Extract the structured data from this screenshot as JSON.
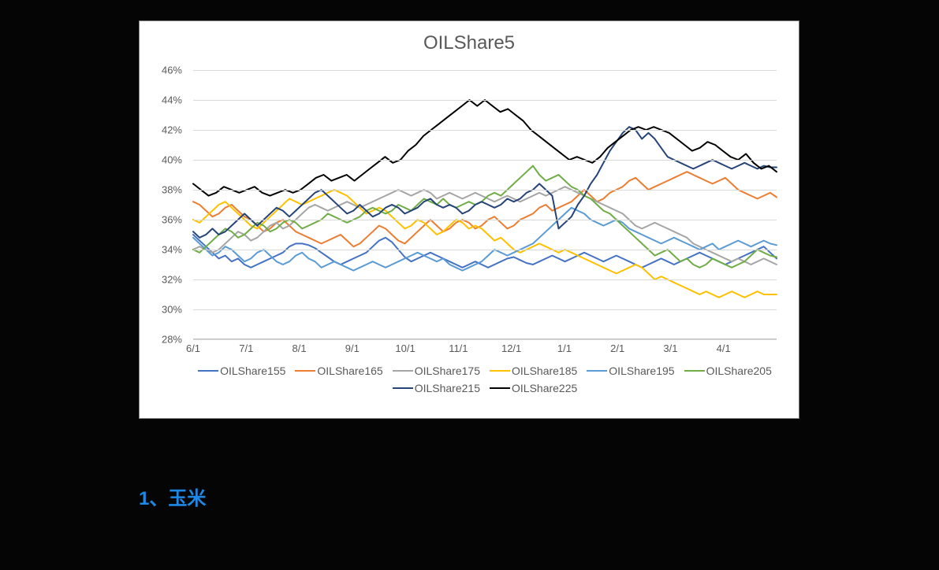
{
  "chart": {
    "title": "OILShare5",
    "title_fontsize": 24,
    "title_color": "#595959",
    "background_color": "#ffffff",
    "grid_color": "#d9d9d9",
    "text_color": "#595959",
    "xlim": [
      "6/1",
      "4/30"
    ],
    "ylim": [
      28,
      46
    ],
    "ytick_step": 2,
    "y_format": "percent",
    "y_ticks": [
      "28%",
      "30%",
      "32%",
      "34%",
      "36%",
      "38%",
      "40%",
      "42%",
      "44%",
      "46%"
    ],
    "x_ticks": [
      "6/1",
      "7/1",
      "8/1",
      "9/1",
      "10/1",
      "11/1",
      "12/1",
      "1/1",
      "2/1",
      "3/1",
      "4/1"
    ],
    "line_width": 2,
    "series": [
      {
        "name": "OILShare155",
        "color": "#4472c4",
        "values": [
          35.0,
          34.6,
          34.2,
          33.8,
          33.4,
          33.6,
          33.2,
          33.4,
          33.0,
          32.8,
          33.0,
          33.2,
          33.4,
          33.6,
          33.8,
          34.2,
          34.4,
          34.4,
          34.3,
          34.1,
          33.8,
          33.5,
          33.2,
          33.0,
          33.2,
          33.4,
          33.6,
          33.8,
          34.2,
          34.6,
          34.8,
          34.5,
          34.0,
          33.5,
          33.2,
          33.4,
          33.6,
          33.8,
          33.6,
          33.4,
          33.2,
          33.0,
          32.8,
          33.0,
          33.2,
          33.0,
          32.8,
          33.0,
          33.2,
          33.4,
          33.5,
          33.3,
          33.1,
          33.0,
          33.2,
          33.4,
          33.6,
          33.4,
          33.2,
          33.4,
          33.6,
          33.8,
          33.6,
          33.4,
          33.2,
          33.4,
          33.6,
          33.4,
          33.2,
          33.0,
          32.8,
          33.0,
          33.2,
          33.4,
          33.2,
          33.0,
          33.2,
          33.4,
          33.6,
          33.8,
          33.6,
          33.4,
          33.2,
          33.0,
          33.2,
          33.4,
          33.6,
          33.8,
          34.0,
          34.2,
          33.8,
          33.4
        ]
      },
      {
        "name": "OILShare165",
        "color": "#ed7d31",
        "values": [
          37.2,
          37.0,
          36.6,
          36.2,
          36.4,
          36.8,
          37.0,
          36.6,
          36.2,
          36.0,
          35.6,
          35.2,
          35.4,
          35.8,
          36.0,
          35.6,
          35.2,
          35.0,
          34.8,
          34.6,
          34.4,
          34.6,
          34.8,
          35.0,
          34.6,
          34.2,
          34.4,
          34.8,
          35.2,
          35.6,
          35.4,
          35.0,
          34.6,
          34.4,
          34.8,
          35.2,
          35.6,
          36.0,
          35.6,
          35.2,
          35.4,
          35.8,
          36.0,
          35.8,
          35.4,
          35.6,
          36.0,
          36.2,
          35.8,
          35.4,
          35.6,
          36.0,
          36.2,
          36.4,
          36.8,
          37.0,
          36.6,
          36.8,
          37.0,
          37.2,
          37.6,
          38.0,
          37.6,
          37.2,
          37.4,
          37.8,
          38.0,
          38.2,
          38.6,
          38.8,
          38.4,
          38.0,
          38.2,
          38.4,
          38.6,
          38.8,
          39.0,
          39.2,
          39.0,
          38.8,
          38.6,
          38.4,
          38.6,
          38.8,
          38.4,
          38.0,
          37.8,
          37.6,
          37.4,
          37.6,
          37.8,
          37.5
        ]
      },
      {
        "name": "OILShare175",
        "color": "#a5a5a5",
        "values": [
          34.0,
          34.2,
          34.0,
          33.8,
          34.0,
          34.4,
          34.8,
          35.2,
          35.0,
          34.6,
          34.8,
          35.2,
          35.6,
          35.8,
          35.4,
          35.6,
          36.0,
          36.4,
          36.8,
          37.0,
          36.8,
          36.6,
          36.8,
          37.0,
          37.2,
          37.0,
          36.8,
          37.0,
          37.2,
          37.4,
          37.6,
          37.8,
          38.0,
          37.8,
          37.6,
          37.8,
          38.0,
          37.8,
          37.4,
          37.6,
          37.8,
          37.6,
          37.4,
          37.6,
          37.8,
          37.6,
          37.4,
          37.2,
          37.4,
          37.6,
          37.4,
          37.2,
          37.4,
          37.6,
          37.8,
          37.6,
          37.8,
          38.0,
          38.2,
          38.0,
          37.8,
          37.6,
          37.4,
          37.2,
          37.0,
          36.8,
          36.6,
          36.4,
          36.0,
          35.6,
          35.4,
          35.6,
          35.8,
          35.6,
          35.4,
          35.2,
          35.0,
          34.8,
          34.4,
          34.2,
          34.0,
          33.8,
          33.6,
          33.4,
          33.2,
          33.4,
          33.2,
          33.0,
          33.2,
          33.4,
          33.2,
          33.0
        ]
      },
      {
        "name": "OILShare185",
        "color": "#ffc000",
        "values": [
          36.0,
          35.8,
          36.2,
          36.6,
          37.0,
          37.2,
          36.8,
          36.4,
          36.0,
          35.6,
          35.4,
          35.8,
          36.2,
          36.6,
          37.0,
          37.4,
          37.2,
          37.0,
          37.2,
          37.4,
          37.6,
          37.8,
          38.0,
          37.8,
          37.6,
          37.2,
          36.8,
          36.4,
          36.6,
          36.8,
          36.6,
          36.2,
          35.8,
          35.4,
          35.6,
          36.0,
          35.8,
          35.4,
          35.0,
          35.2,
          35.6,
          36.0,
          35.8,
          35.4,
          35.6,
          35.4,
          35.0,
          34.6,
          34.8,
          34.4,
          34.0,
          33.8,
          34.0,
          34.2,
          34.4,
          34.2,
          34.0,
          33.8,
          34.0,
          33.8,
          33.6,
          33.4,
          33.2,
          33.0,
          32.8,
          32.6,
          32.4,
          32.6,
          32.8,
          33.0,
          32.8,
          32.4,
          32.0,
          32.2,
          32.0,
          31.8,
          31.6,
          31.4,
          31.2,
          31.0,
          31.2,
          31.0,
          30.8,
          31.0,
          31.2,
          31.0,
          30.8,
          31.0,
          31.2,
          31.0,
          31.0,
          31.0
        ]
      },
      {
        "name": "OILShare195",
        "color": "#5b9bd5",
        "values": [
          34.8,
          34.4,
          34.0,
          33.6,
          33.8,
          34.2,
          34.0,
          33.6,
          33.2,
          33.4,
          33.8,
          34.0,
          33.6,
          33.2,
          33.0,
          33.2,
          33.6,
          33.8,
          33.4,
          33.2,
          32.8,
          33.0,
          33.2,
          33.0,
          32.8,
          32.6,
          32.8,
          33.0,
          33.2,
          33.0,
          32.8,
          33.0,
          33.2,
          33.4,
          33.6,
          33.8,
          33.6,
          33.4,
          33.2,
          33.4,
          33.0,
          32.8,
          32.6,
          32.8,
          33.0,
          33.2,
          33.6,
          34.0,
          33.8,
          33.6,
          33.8,
          34.0,
          34.2,
          34.4,
          34.8,
          35.2,
          35.6,
          36.0,
          36.4,
          36.8,
          36.6,
          36.4,
          36.0,
          35.8,
          35.6,
          35.8,
          36.0,
          35.8,
          35.4,
          35.2,
          35.0,
          34.8,
          34.6,
          34.4,
          34.6,
          34.8,
          34.6,
          34.4,
          34.2,
          34.0,
          34.2,
          34.4,
          34.0,
          34.2,
          34.4,
          34.6,
          34.4,
          34.2,
          34.4,
          34.6,
          34.4,
          34.3
        ]
      },
      {
        "name": "OILShare205",
        "color": "#70ad47",
        "values": [
          34.0,
          33.8,
          34.2,
          34.6,
          35.0,
          35.4,
          35.2,
          34.8,
          35.0,
          35.4,
          35.8,
          35.6,
          35.2,
          35.4,
          35.8,
          36.0,
          35.8,
          35.4,
          35.6,
          35.8,
          36.0,
          36.4,
          36.2,
          36.0,
          35.8,
          36.0,
          36.2,
          36.6,
          36.8,
          36.6,
          36.4,
          36.6,
          37.0,
          36.8,
          36.6,
          37.0,
          37.4,
          37.2,
          37.0,
          37.4,
          37.0,
          36.8,
          37.0,
          37.2,
          37.0,
          37.2,
          37.6,
          37.8,
          37.6,
          38.0,
          38.4,
          38.8,
          39.2,
          39.6,
          39.0,
          38.6,
          38.8,
          39.0,
          38.6,
          38.2,
          38.0,
          37.6,
          37.4,
          37.0,
          36.6,
          36.4,
          36.0,
          35.6,
          35.2,
          34.8,
          34.4,
          34.0,
          33.6,
          33.8,
          34.0,
          33.6,
          33.2,
          33.4,
          33.0,
          32.8,
          33.0,
          33.4,
          33.2,
          33.0,
          32.8,
          33.0,
          33.2,
          33.6,
          34.0,
          33.8,
          33.6,
          33.5
        ]
      },
      {
        "name": "OILShare215",
        "color": "#264478",
        "values": [
          35.2,
          34.8,
          35.0,
          35.4,
          35.0,
          35.2,
          35.6,
          36.0,
          36.4,
          36.0,
          35.6,
          36.0,
          36.4,
          36.8,
          36.6,
          36.2,
          36.6,
          37.0,
          37.4,
          37.8,
          38.0,
          37.6,
          37.2,
          36.8,
          36.4,
          36.6,
          37.0,
          36.6,
          36.2,
          36.4,
          36.8,
          37.0,
          36.8,
          36.4,
          36.6,
          36.8,
          37.2,
          37.4,
          37.0,
          36.8,
          37.0,
          36.8,
          36.4,
          36.6,
          37.0,
          37.2,
          37.0,
          36.8,
          37.0,
          37.4,
          37.2,
          37.4,
          37.8,
          38.0,
          38.4,
          38.0,
          37.6,
          35.4,
          35.8,
          36.2,
          37.0,
          37.6,
          38.4,
          39.0,
          39.8,
          40.6,
          41.2,
          41.8,
          42.2,
          42.0,
          41.4,
          41.8,
          41.4,
          40.8,
          40.2,
          40.0,
          39.8,
          39.6,
          39.4,
          39.6,
          39.8,
          40.0,
          39.8,
          39.6,
          39.4,
          39.6,
          39.8,
          39.6,
          39.4,
          39.6,
          39.5,
          39.5
        ]
      },
      {
        "name": "OILShare225",
        "color": "#000000",
        "values": [
          38.4,
          38.0,
          37.6,
          37.8,
          38.2,
          38.0,
          37.8,
          38.0,
          38.2,
          37.8,
          37.6,
          37.8,
          38.0,
          37.8,
          38.0,
          38.4,
          38.8,
          39.0,
          38.6,
          38.8,
          39.0,
          38.6,
          39.0,
          39.4,
          39.8,
          40.2,
          39.8,
          40.0,
          40.6,
          41.0,
          41.6,
          42.0,
          42.4,
          42.8,
          43.2,
          43.6,
          44.0,
          43.6,
          44.0,
          43.6,
          43.2,
          43.4,
          43.0,
          42.6,
          42.0,
          41.6,
          41.2,
          40.8,
          40.4,
          40.0,
          40.2,
          40.0,
          39.8,
          40.2,
          40.8,
          41.2,
          41.6,
          42.0,
          42.2,
          42.0,
          42.2,
          42.0,
          41.8,
          41.4,
          41.0,
          40.6,
          40.8,
          41.2,
          41.0,
          40.6,
          40.2,
          40.0,
          40.4,
          39.8,
          39.4,
          39.6,
          39.2
        ]
      }
    ]
  },
  "heading": {
    "text": "1、玉米",
    "color": "#1e88e5",
    "fontsize": 24
  },
  "page": {
    "background": "#050505"
  }
}
